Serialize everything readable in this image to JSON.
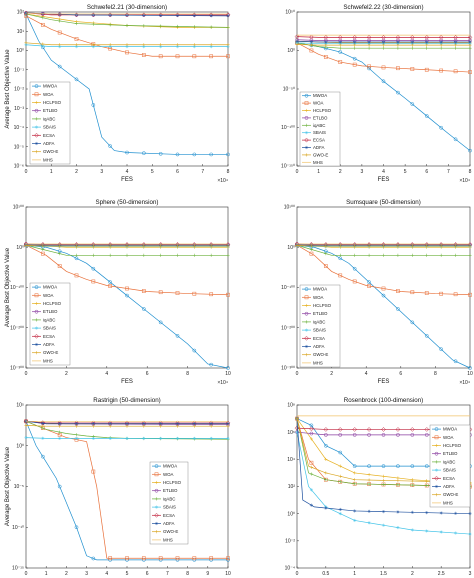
{
  "legend_labels": [
    "MWOA",
    "WOA",
    "HCLPSO",
    "ETLBO",
    "iqABC",
    "SBAIS",
    "ECSA",
    "ADFA",
    "GWO-E",
    "MHS"
  ],
  "series_colors": [
    "#1f8fcf",
    "#e8703a",
    "#e6b020",
    "#8a3ea0",
    "#6ab03a",
    "#41c3e8",
    "#c0203a",
    "#1c4f9e",
    "#d9a520",
    "#f2c36a"
  ],
  "series_markers": [
    "circle",
    "square",
    "plus",
    "circle",
    "plus",
    "asterisk",
    "diamond",
    "asterisk",
    "plus",
    "none"
  ],
  "chart_data": [
    {
      "type": "line",
      "title": "Schwefel2.21 (30-dimension)",
      "xlabel": "FES",
      "ylabel": "Average Best Objective Value",
      "x_exponent_label": "×10⁴",
      "y_scale": "log",
      "xlim": [
        0,
        8
      ],
      "ylim_exp": [
        -6,
        2
      ],
      "x_ticks": [
        "0",
        "1",
        "2",
        "3",
        "4",
        "5",
        "6",
        "7",
        "8"
      ],
      "y_ticks": [
        {
          "exp": -6,
          "label": "10⁻⁶"
        },
        {
          "exp": -5,
          "label": "10⁻⁵"
        },
        {
          "exp": -4,
          "label": "10⁻⁴"
        },
        {
          "exp": -3,
          "label": "10⁻³"
        },
        {
          "exp": -2,
          "label": "10⁻²"
        },
        {
          "exp": -1,
          "label": "10⁻¹"
        },
        {
          "exp": 0,
          "label": "10⁰"
        },
        {
          "exp": 1,
          "label": "10¹"
        },
        {
          "exp": 2,
          "label": "10²"
        }
      ],
      "grid": false,
      "legend_position": "left",
      "series": [
        {
          "x": [
            0,
            0.5,
            1,
            1.5,
            2,
            2.5,
            3,
            3.5,
            4,
            6,
            8
          ],
          "y_exp": [
            1.9,
            0.5,
            -0.5,
            -1,
            -1.5,
            -2,
            -4.5,
            -5.2,
            -5.3,
            -5.4,
            -5.4
          ]
        },
        {
          "x": [
            0,
            1,
            2,
            3,
            4,
            5,
            6,
            8
          ],
          "y_exp": [
            1.8,
            1.1,
            0.6,
            0.2,
            -0.1,
            -0.3,
            -0.3,
            -0.3
          ]
        },
        {
          "x": [
            0,
            1,
            2,
            3,
            4,
            6,
            8
          ],
          "y_exp": [
            1.9,
            1.7,
            1.5,
            1.4,
            1.3,
            1.2,
            1.2
          ]
        },
        {
          "x": [
            0,
            1,
            2,
            8
          ],
          "y_exp": [
            1.95,
            1.9,
            1.85,
            1.85
          ]
        },
        {
          "x": [
            0,
            1,
            2,
            4,
            8
          ],
          "y_exp": [
            1.9,
            1.6,
            1.4,
            1.3,
            1.2
          ]
        },
        {
          "x": [
            0,
            1,
            8
          ],
          "y_exp": [
            0.3,
            0.2,
            0.2
          ]
        },
        {
          "x": [
            0,
            1,
            8
          ],
          "y_exp": [
            1.95,
            1.85,
            1.85
          ]
        },
        {
          "x": [
            0,
            1,
            2,
            8
          ],
          "y_exp": [
            1.95,
            1.9,
            1.85,
            1.8
          ]
        },
        {
          "x": [
            0,
            1,
            8
          ],
          "y_exp": [
            0.4,
            0.3,
            0.3
          ]
        },
        {
          "x": [
            0,
            1,
            8
          ],
          "y_exp": [
            1.95,
            1.9,
            1.9
          ]
        }
      ]
    },
    {
      "type": "line",
      "title": "Schwefel2.22 (30-dimension)",
      "xlabel": "FES",
      "ylabel": "",
      "x_exponent_label": "×10⁴",
      "y_scale": "log",
      "xlim": [
        0,
        8
      ],
      "ylim_exp": [
        -150,
        50
      ],
      "x_ticks": [
        "0",
        "1",
        "2",
        "3",
        "4",
        "5",
        "6",
        "7",
        "8"
      ],
      "y_ticks": [
        {
          "exp": -150,
          "label": "10⁻¹⁵⁰"
        },
        {
          "exp": -100,
          "label": "10⁻¹⁰⁰"
        },
        {
          "exp": -50,
          "label": "10⁻⁵⁰"
        },
        {
          "exp": 0,
          "label": "10⁰"
        },
        {
          "exp": 50,
          "label": "10⁵⁰"
        }
      ],
      "grid": false,
      "legend_position": "left",
      "series": [
        {
          "x": [
            0,
            1,
            2,
            3,
            4,
            5,
            6,
            7,
            8
          ],
          "y_exp": [
            10,
            5,
            -2,
            -15,
            -40,
            -62,
            -85,
            -108,
            -130
          ]
        },
        {
          "x": [
            0,
            1,
            2,
            3,
            4,
            6,
            8
          ],
          "y_exp": [
            10,
            -5,
            -15,
            -20,
            -22,
            -25,
            -28
          ]
        },
        {
          "x": [
            0,
            1,
            2,
            8
          ],
          "y_exp": [
            12,
            11,
            10,
            10
          ]
        },
        {
          "x": [
            0,
            1,
            8
          ],
          "y_exp": [
            14,
            13,
            13
          ]
        },
        {
          "x": [
            0,
            1,
            2,
            8
          ],
          "y_exp": [
            10,
            5,
            3,
            3
          ]
        },
        {
          "x": [
            0,
            1,
            8
          ],
          "y_exp": [
            10,
            9,
            9
          ]
        },
        {
          "x": [
            0,
            1,
            8
          ],
          "y_exp": [
            18,
            17,
            17
          ]
        },
        {
          "x": [
            0,
            1,
            8
          ],
          "y_exp": [
            12,
            11,
            11
          ]
        },
        {
          "x": [
            0,
            1,
            8
          ],
          "y_exp": [
            8,
            7,
            7
          ]
        },
        {
          "x": [
            0,
            1,
            8
          ],
          "y_exp": [
            20,
            20,
            20
          ]
        }
      ]
    },
    {
      "type": "line",
      "title": "Sphere (50-dimension)",
      "xlabel": "FES",
      "ylabel": "Average Best Objective Value",
      "x_exponent_label": "×10⁴",
      "y_scale": "log",
      "xlim": [
        0,
        10
      ],
      "ylim_exp": [
        -300,
        100
      ],
      "x_ticks": [
        "0",
        "2",
        "4",
        "6",
        "8",
        "10"
      ],
      "y_ticks": [
        {
          "exp": -300,
          "label": "10⁻³⁰⁰"
        },
        {
          "exp": -200,
          "label": "10⁻²⁰⁰"
        },
        {
          "exp": -100,
          "label": "10⁻¹⁰⁰"
        },
        {
          "exp": 0,
          "label": "10⁰"
        },
        {
          "exp": 100,
          "label": "10¹⁰⁰"
        }
      ],
      "grid": false,
      "legend_position": "left",
      "series": [
        {
          "x": [
            0,
            1,
            2,
            3,
            4,
            5,
            6,
            7,
            8,
            9,
            10
          ],
          "y_exp": [
            5,
            0,
            -15,
            -40,
            -80,
            -120,
            -160,
            -200,
            -240,
            -290,
            -300
          ]
        },
        {
          "x": [
            0,
            1,
            2,
            3,
            4,
            6,
            8,
            10
          ],
          "y_exp": [
            5,
            -20,
            -60,
            -80,
            -95,
            -110,
            -115,
            -118
          ]
        },
        {
          "x": [
            0,
            1,
            2,
            10
          ],
          "y_exp": [
            5,
            3,
            0,
            0
          ]
        },
        {
          "x": [
            0,
            1,
            10
          ],
          "y_exp": [
            8,
            6,
            6
          ]
        },
        {
          "x": [
            0,
            2,
            10
          ],
          "y_exp": [
            5,
            -20,
            -20
          ]
        },
        {
          "x": [
            0,
            1,
            10
          ],
          "y_exp": [
            3,
            2,
            2
          ]
        },
        {
          "x": [
            0,
            1,
            10
          ],
          "y_exp": [
            8,
            7,
            7
          ]
        },
        {
          "x": [
            0,
            1,
            10
          ],
          "y_exp": [
            6,
            5,
            5
          ]
        },
        {
          "x": [
            0,
            1,
            10
          ],
          "y_exp": [
            4,
            3,
            3
          ]
        },
        {
          "x": [
            0,
            1,
            10
          ],
          "y_exp": [
            8,
            8,
            8
          ]
        }
      ]
    },
    {
      "type": "line",
      "title": "Sumsquare (50-dimension)",
      "xlabel": "FES",
      "ylabel": "",
      "x_exponent_label": "×10⁴",
      "y_scale": "log",
      "xlim": [
        0,
        10
      ],
      "ylim_exp": [
        -300,
        100
      ],
      "x_ticks": [
        "0",
        "2",
        "4",
        "6",
        "8",
        "10"
      ],
      "y_ticks": [
        {
          "exp": -300,
          "label": "10⁻³⁰⁰"
        },
        {
          "exp": -200,
          "label": "10⁻²⁰⁰"
        },
        {
          "exp": -100,
          "label": "10⁻¹⁰⁰"
        },
        {
          "exp": 0,
          "label": "10⁰"
        },
        {
          "exp": 100,
          "label": "10¹⁰⁰"
        }
      ],
      "grid": false,
      "legend_position": "left",
      "series": [
        {
          "x": [
            0,
            1,
            2,
            3,
            4,
            5,
            6,
            7,
            8,
            9,
            10
          ],
          "y_exp": [
            5,
            0,
            -15,
            -40,
            -80,
            -120,
            -160,
            -200,
            -240,
            -280,
            -300
          ]
        },
        {
          "x": [
            0,
            1,
            2,
            3,
            4,
            6,
            8,
            10
          ],
          "y_exp": [
            5,
            -20,
            -60,
            -80,
            -95,
            -110,
            -115,
            -118
          ]
        },
        {
          "x": [
            0,
            1,
            2,
            10
          ],
          "y_exp": [
            5,
            3,
            0,
            0
          ]
        },
        {
          "x": [
            0,
            1,
            10
          ],
          "y_exp": [
            8,
            6,
            6
          ]
        },
        {
          "x": [
            0,
            2,
            10
          ],
          "y_exp": [
            5,
            -20,
            -20
          ]
        },
        {
          "x": [
            0,
            1,
            10
          ],
          "y_exp": [
            3,
            2,
            2
          ]
        },
        {
          "x": [
            0,
            1,
            10
          ],
          "y_exp": [
            8,
            7,
            7
          ]
        },
        {
          "x": [
            0,
            1,
            10
          ],
          "y_exp": [
            6,
            5,
            5
          ]
        },
        {
          "x": [
            0,
            1,
            10
          ],
          "y_exp": [
            4,
            3,
            3
          ]
        },
        {
          "x": [
            0,
            1,
            10
          ],
          "y_exp": [
            8,
            8,
            8
          ]
        }
      ]
    },
    {
      "type": "line",
      "title": "Rastrigin (50-dimension)",
      "xlabel": "FES",
      "ylabel": "Average Best Objective Value",
      "x_exponent_label": "×10⁴",
      "y_scale": "log",
      "xlim": [
        0,
        10
      ],
      "ylim_exp": [
        -15,
        5
      ],
      "x_ticks": [
        "0",
        "1",
        "2",
        "3",
        "4",
        "5",
        "6",
        "7",
        "8",
        "9",
        "10"
      ],
      "y_ticks": [
        {
          "exp": -15,
          "label": "10⁻¹⁵"
        },
        {
          "exp": -10,
          "label": "10⁻¹⁰"
        },
        {
          "exp": -5,
          "label": "10⁻⁵"
        },
        {
          "exp": 0,
          "label": "10⁰"
        },
        {
          "exp": 5,
          "label": "10⁵"
        }
      ],
      "grid": false,
      "legend_position": "right",
      "series": [
        {
          "x": [
            0,
            0.5,
            1,
            1.5,
            2,
            2.5,
            3,
            3.5,
            10
          ],
          "y_exp": [
            3,
            0,
            -2,
            -4,
            -7,
            -10,
            -13.5,
            -14,
            -14
          ]
        },
        {
          "x": [
            0,
            1,
            2,
            3,
            3.5,
            4,
            10
          ],
          "y_exp": [
            3,
            2,
            1,
            0.5,
            -5,
            -13.8,
            -13.8
          ]
        },
        {
          "x": [
            0,
            1,
            2,
            10
          ],
          "y_exp": [
            3,
            2.8,
            2.7,
            2.7
          ]
        },
        {
          "x": [
            0,
            1,
            10
          ],
          "y_exp": [
            3,
            2.7,
            2.6
          ]
        },
        {
          "x": [
            0,
            1,
            2,
            3,
            4,
            5,
            10
          ],
          "y_exp": [
            3,
            2,
            1.5,
            1.2,
            1,
            0.9,
            0.8
          ]
        },
        {
          "x": [
            0,
            1,
            10
          ],
          "y_exp": [
            1,
            0.9,
            0.9
          ]
        },
        {
          "x": [
            0,
            1,
            10
          ],
          "y_exp": [
            3,
            2.8,
            2.8
          ]
        },
        {
          "x": [
            0,
            1,
            10
          ],
          "y_exp": [
            3,
            2.7,
            2.7
          ]
        },
        {
          "x": [
            0,
            1,
            10
          ],
          "y_exp": [
            2.5,
            2.4,
            2.4
          ]
        },
        {
          "x": [
            0,
            1,
            10
          ],
          "y_exp": [
            3,
            3,
            3
          ]
        }
      ]
    },
    {
      "type": "line",
      "title": "Rosenbrock (100-dimension)",
      "xlabel": "FES",
      "ylabel": "",
      "x_exponent_label": "×10⁵",
      "y_scale": "log",
      "xlim": [
        0,
        3
      ],
      "ylim_exp": [
        -4,
        8
      ],
      "x_ticks": [
        "0",
        "0.5",
        "1",
        "1.5",
        "2",
        "2.5",
        "3"
      ],
      "y_ticks": [
        {
          "exp": -4,
          "label": "10⁻⁴"
        },
        {
          "exp": -2,
          "label": "10⁻²"
        },
        {
          "exp": 0,
          "label": "10⁰"
        },
        {
          "exp": 2,
          "label": "10²"
        },
        {
          "exp": 4,
          "label": "10⁴"
        },
        {
          "exp": 6,
          "label": "10⁶"
        },
        {
          "exp": 8,
          "label": "10⁸"
        }
      ],
      "grid": false,
      "legend_position": "right",
      "series": [
        {
          "x": [
            0,
            0.25,
            0.5,
            0.75,
            1,
            1.5,
            2,
            3
          ],
          "y_exp": [
            7,
            6.5,
            5,
            4.5,
            3.5,
            3.5,
            3.5,
            3.5
          ]
        },
        {
          "x": [
            0,
            0.2,
            0.5,
            1,
            2,
            3
          ],
          "y_exp": [
            7,
            4,
            2.5,
            2.2,
            2.1,
            2
          ]
        },
        {
          "x": [
            0,
            0.5,
            1,
            2,
            3
          ],
          "y_exp": [
            7,
            4,
            3,
            2.5,
            2.2
          ]
        },
        {
          "x": [
            0,
            0.5,
            3
          ],
          "y_exp": [
            6,
            5.8,
            5.8
          ]
        },
        {
          "x": [
            0,
            0.2,
            0.5,
            1,
            3
          ],
          "y_exp": [
            7,
            3,
            2.5,
            2.2,
            2
          ]
        },
        {
          "x": [
            0,
            0.2,
            0.5,
            1,
            2,
            3
          ],
          "y_exp": [
            6,
            2,
            0.5,
            -0.5,
            -1.2,
            -1.5
          ]
        },
        {
          "x": [
            0,
            0.5,
            3
          ],
          "y_exp": [
            6.3,
            6.2,
            6.2
          ]
        },
        {
          "x": [
            0,
            0.1,
            0.3,
            1,
            3
          ],
          "y_exp": [
            7,
            1,
            0.5,
            0.2,
            0
          ]
        },
        {
          "x": [
            0,
            0.2,
            0.5,
            1,
            3
          ],
          "y_exp": [
            7,
            3.5,
            3,
            2.5,
            2.3
          ]
        },
        {
          "x": [
            0,
            0.5,
            3
          ],
          "y_exp": [
            7.2,
            7.2,
            7.2
          ]
        }
      ]
    }
  ]
}
